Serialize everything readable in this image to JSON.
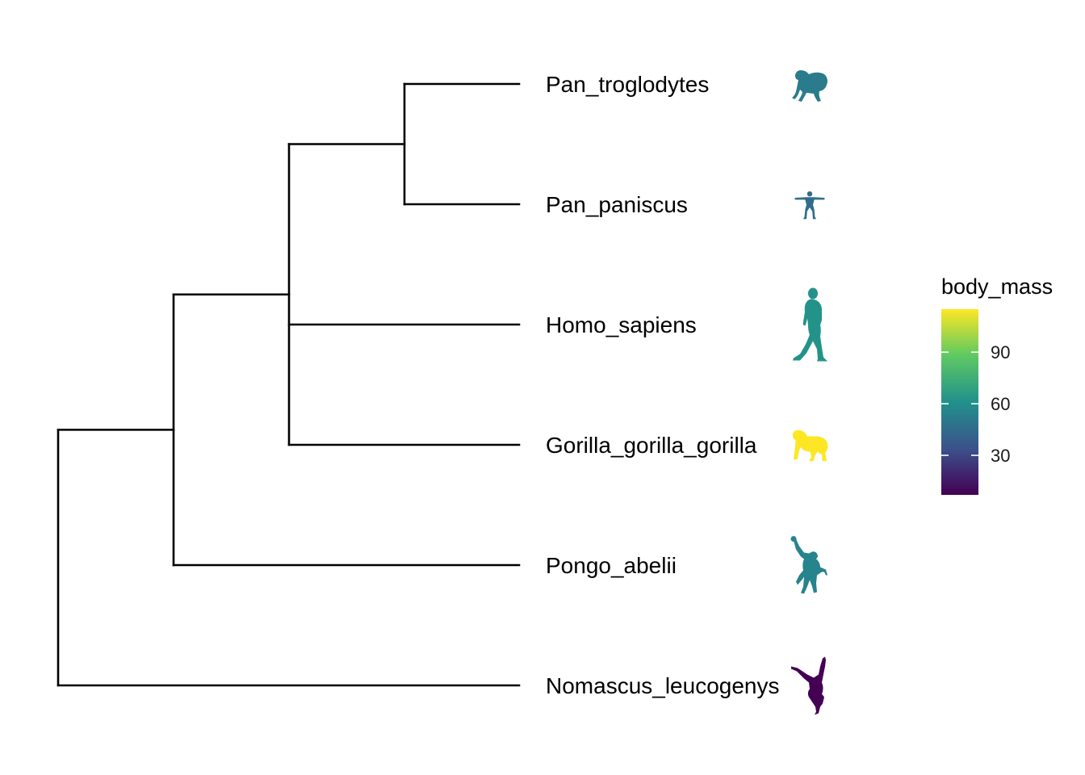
{
  "chart_data": {
    "type": "phylogenetic_tree",
    "tips": [
      {
        "name": "Pan_troglodytes",
        "silhouette": "chimpanzee-icon",
        "body_mass": 52
      },
      {
        "name": "Pan_paniscus",
        "silhouette": "bonobo-icon",
        "body_mass": 45
      },
      {
        "name": "Homo_sapiens",
        "silhouette": "human-walking-icon",
        "body_mass": 62
      },
      {
        "name": "Gorilla_gorilla_gorilla",
        "silhouette": "gorilla-icon",
        "body_mass": 115
      },
      {
        "name": "Pongo_abelii",
        "silhouette": "orangutan-icon",
        "body_mass": 55
      },
      {
        "name": "Nomascus_leucogenys",
        "silhouette": "gibbon-icon",
        "body_mass": 7
      }
    ],
    "tree": {
      "children": [
        {
          "children": [
            {
              "children": [
                {
                  "children": [
                    {
                      "tip": "Pan_troglodytes"
                    },
                    {
                      "tip": "Pan_paniscus"
                    }
                  ]
                },
                {
                  "tip": "Homo_sapiens"
                },
                {
                  "tip": "Gorilla_gorilla_gorilla"
                }
              ]
            },
            {
              "tip": "Pongo_abelii"
            }
          ]
        },
        {
          "tip": "Nomascus_leucogenys"
        }
      ]
    },
    "legend": {
      "title": "body_mass",
      "ticks": [
        "30",
        "60",
        "90"
      ],
      "tick_values": [
        30,
        60,
        90
      ],
      "limits": [
        7,
        115
      ],
      "palette": [
        "#440154",
        "#3b528b",
        "#21918c",
        "#5ec962",
        "#fde725"
      ],
      "placement": "right"
    }
  }
}
